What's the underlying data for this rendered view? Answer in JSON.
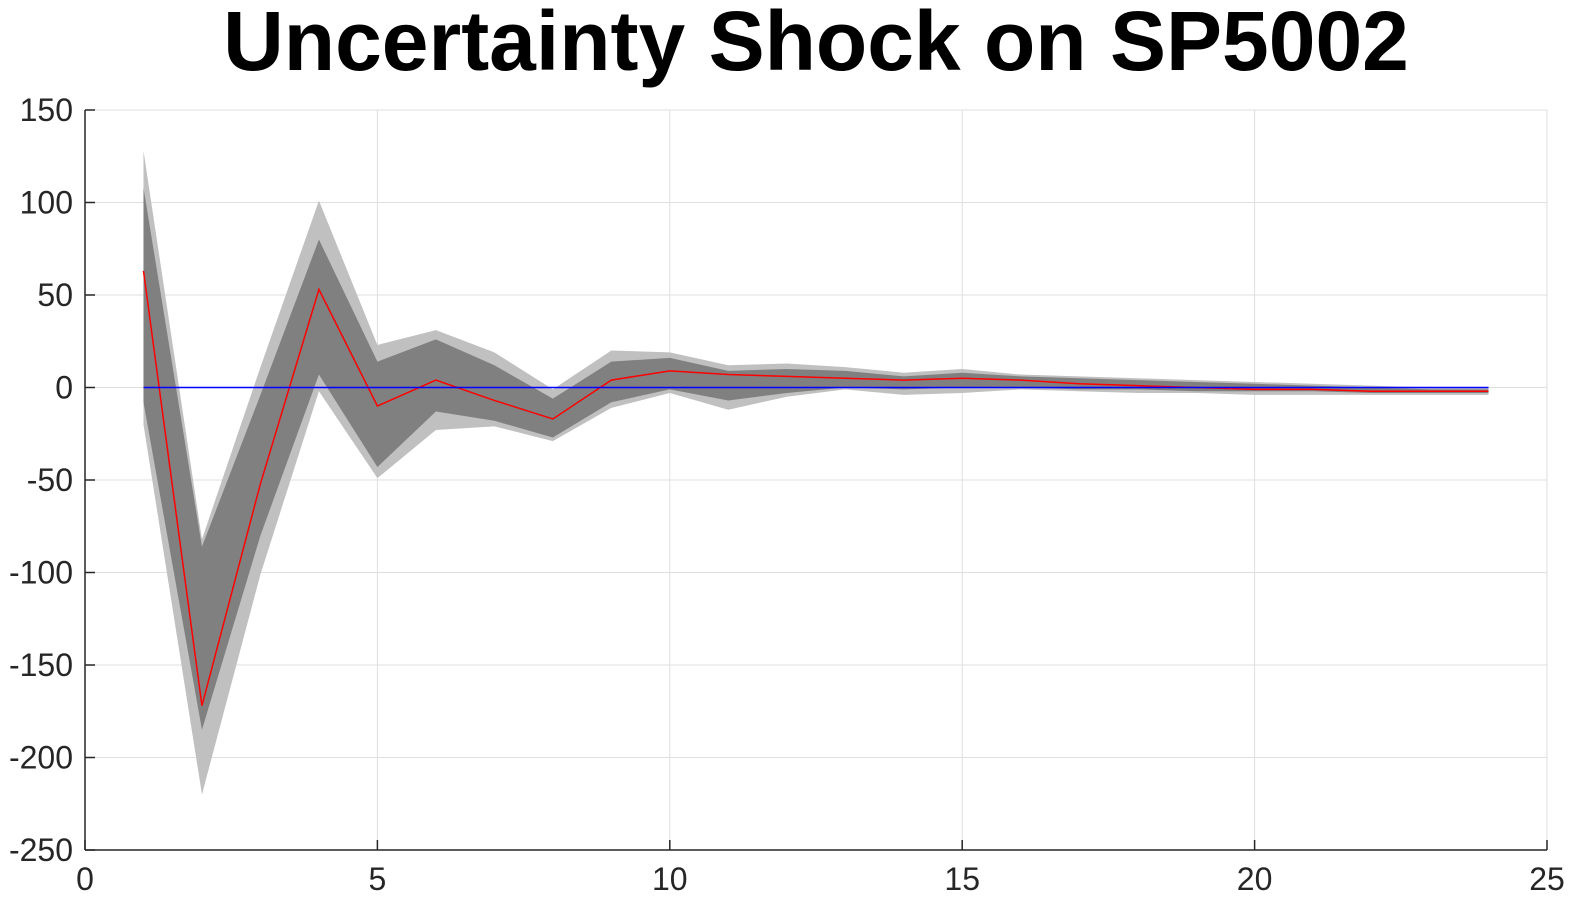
{
  "chart_data": {
    "type": "area",
    "title": "Uncertainty Shock on SP5002",
    "xlabel": "",
    "ylabel": "",
    "xlim": [
      0,
      25
    ],
    "ylim": [
      -250,
      150
    ],
    "xticks": [
      0,
      5,
      10,
      15,
      20,
      25
    ],
    "yticks": [
      150,
      100,
      50,
      0,
      -50,
      -100,
      -150,
      -200,
      -250
    ],
    "xtick_labels": [
      "0",
      "5",
      "10",
      "15",
      "20",
      "25"
    ],
    "ytick_labels": [
      "150",
      "100",
      "50",
      "0",
      "-50",
      "-100",
      "-150",
      "-200",
      "-250"
    ],
    "grid": true,
    "legend": "none",
    "x": [
      1,
      2,
      3,
      4,
      5,
      6,
      7,
      8,
      9,
      10,
      11,
      12,
      13,
      14,
      15,
      16,
      17,
      18,
      19,
      20,
      21,
      22,
      23,
      24
    ],
    "series": [
      {
        "role": "outer-band",
        "color": "#c0c0c0",
        "upper": [
          128,
          -82,
          11,
          101,
          23,
          31,
          19,
          -1,
          20,
          19,
          12,
          13,
          11,
          8,
          10,
          7,
          6,
          5,
          4,
          3,
          2,
          1,
          0,
          0
        ],
        "lower": [
          -20,
          -220,
          -101,
          -2,
          -49,
          -23,
          -21,
          -29,
          -11,
          -3,
          -12,
          -5,
          -1,
          -4,
          -3,
          -1,
          -2,
          -3,
          -3,
          -4,
          -4,
          -4,
          -4,
          -4
        ]
      },
      {
        "role": "inner-band",
        "color": "#808080",
        "upper": [
          108,
          -86,
          -4,
          80,
          14,
          26,
          12,
          -6,
          14,
          16,
          9,
          10,
          9,
          6,
          8,
          6,
          5,
          4,
          3,
          2,
          1,
          0,
          -1,
          -1
        ],
        "lower": [
          -8,
          -185,
          -80,
          7,
          -43,
          -13,
          -18,
          -27,
          -8,
          -1,
          -7,
          -3,
          0,
          -1,
          0,
          0,
          -1,
          -1,
          -2,
          -2,
          -2,
          -3,
          -3,
          -3
        ]
      },
      {
        "role": "median",
        "color": "#ff0000",
        "values": [
          63,
          -172,
          -52,
          53,
          -10,
          4,
          -7,
          -17,
          4,
          9,
          7,
          6,
          5,
          4,
          5,
          4,
          2,
          1,
          0,
          -1,
          -1,
          -2,
          -2,
          -2
        ]
      },
      {
        "role": "zero-line",
        "color": "#0000ff",
        "values": [
          0,
          0,
          0,
          0,
          0,
          0,
          0,
          0,
          0,
          0,
          0,
          0,
          0,
          0,
          0,
          0,
          0,
          0,
          0,
          0,
          0,
          0,
          0,
          0
        ]
      }
    ]
  }
}
